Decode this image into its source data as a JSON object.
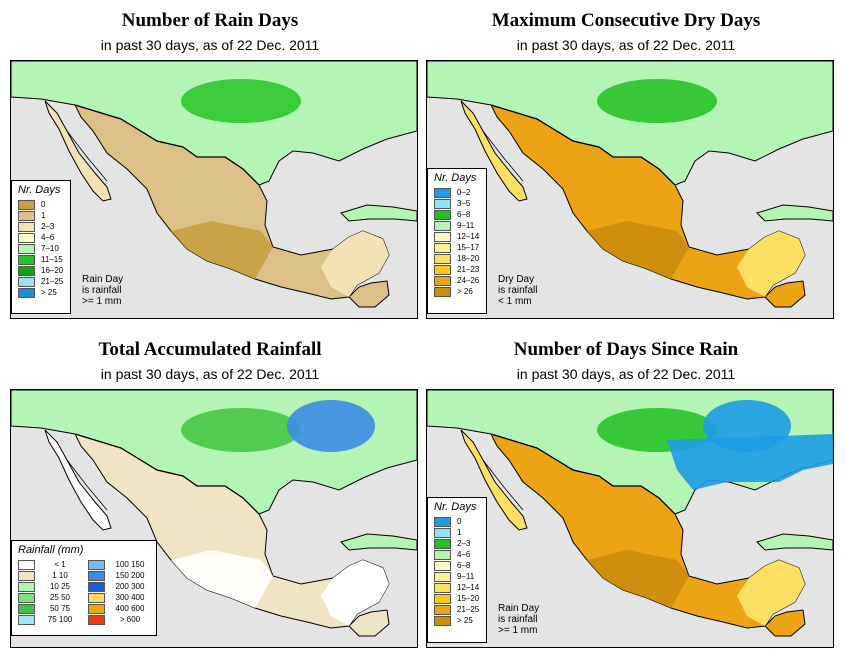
{
  "panels": [
    {
      "id": "rain_days",
      "title": "Number of Rain Days",
      "subtitle": "in past 30 days, as of  22 Dec. 2011",
      "legend_title": "Nr. Days",
      "legend": [
        {
          "label": "0",
          "color": "#c8a040"
        },
        {
          "label": "1",
          "color": "#dcc088"
        },
        {
          "label": "2–3",
          "color": "#f2e2b4"
        },
        {
          "label": "4–6",
          "color": "#fcfcc8"
        },
        {
          "label": "7–10",
          "color": "#b4f4b4"
        },
        {
          "label": "11–15",
          "color": "#24c424"
        },
        {
          "label": "16–20",
          "color": "#10a410"
        },
        {
          "label": "21–25",
          "color": "#a4dcf0"
        },
        {
          "label": "> 25",
          "color": "#1c8cd4"
        }
      ],
      "note": [
        "Rain Day",
        "is rainfall",
        ">= 1 mm"
      ],
      "map_palette": {
        "land_main": "#dcc088",
        "land_dark": "#c8a040",
        "land_light": "#f2e2b4",
        "wet": "#b4f4b4",
        "wetter": "#24c424",
        "blue": "#1c8cd4"
      }
    },
    {
      "id": "dry_days",
      "title": "Maximum Consecutive Dry Days",
      "subtitle": "in past 30 days, as of  22 Dec. 2011",
      "legend_title": "Nr. Days",
      "legend": [
        {
          "label": "0–2",
          "color": "#1c9ce4"
        },
        {
          "label": "3–5",
          "color": "#8ce4f4"
        },
        {
          "label": "6–8",
          "color": "#20c020"
        },
        {
          "label": "9–11",
          "color": "#b4f4b4"
        },
        {
          "label": "12–14",
          "color": "#fcfcc8"
        },
        {
          "label": "15–17",
          "color": "#fcf098"
        },
        {
          "label": "18–20",
          "color": "#fce064"
        },
        {
          "label": "21–23",
          "color": "#fcc81c"
        },
        {
          "label": "24–26",
          "color": "#eca414"
        },
        {
          "label": "> 26",
          "color": "#cc8c0c"
        }
      ],
      "note": [
        "Dry Day",
        "is rainfall",
        "< 1 mm"
      ],
      "map_palette": {
        "land_main": "#eca414",
        "land_dark": "#cc8c0c",
        "land_light": "#fce064",
        "wet": "#b4f4b4",
        "wetter": "#20c020",
        "blue": "#1c9ce4"
      }
    },
    {
      "id": "total_rain",
      "title": "Total Accumulated Rainfall",
      "subtitle": "in past 30 days, as of  22 Dec. 2011",
      "legend_title": "Rainfall (mm)",
      "legend_left": [
        {
          "lo": "< 1",
          "hi": "",
          "color": "#ffffff"
        },
        {
          "lo": "1",
          "hi": "10",
          "color": "#f0e4c4"
        },
        {
          "lo": "10",
          "hi": "25",
          "color": "#b4f4b4"
        },
        {
          "lo": "25",
          "hi": "50",
          "color": "#80e080"
        },
        {
          "lo": "50",
          "hi": "75",
          "color": "#40c440"
        },
        {
          "lo": "75",
          "hi": "100",
          "color": "#a4e4f4"
        }
      ],
      "legend_right": [
        {
          "lo": "100",
          "hi": "150",
          "color": "#74bcf4"
        },
        {
          "lo": "150",
          "hi": "200",
          "color": "#3c8ce4"
        },
        {
          "lo": "200",
          "hi": "300",
          "color": "#1c5cd4"
        },
        {
          "lo": "300",
          "hi": "400",
          "color": "#fcdc64"
        },
        {
          "lo": "400",
          "hi": "600",
          "color": "#f4a40c"
        },
        {
          "lo": "> 600",
          "hi": "",
          "color": "#ec3c0c"
        }
      ],
      "map_palette": {
        "land_main": "#f0e4c4",
        "land_dark": "#ffffff",
        "land_light": "#ffffff",
        "wet": "#b4f4b4",
        "wetter": "#40c440",
        "blue": "#3c8ce4"
      }
    },
    {
      "id": "since_rain",
      "title": "Number of Days Since Rain",
      "subtitle": "in past 30 days, as of  22 Dec. 2011",
      "legend_title": "Nr. Days",
      "legend": [
        {
          "label": "0",
          "color": "#1c9ce4"
        },
        {
          "label": "1",
          "color": "#8ce4f4"
        },
        {
          "label": "2–3",
          "color": "#20c020"
        },
        {
          "label": "4–6",
          "color": "#b4f4b4"
        },
        {
          "label": "6–8",
          "color": "#fcfcc8"
        },
        {
          "label": "9–11",
          "color": "#fcf098"
        },
        {
          "label": "12–14",
          "color": "#fce064"
        },
        {
          "label": "15–20",
          "color": "#fcc81c"
        },
        {
          "label": "21–25",
          "color": "#eca414"
        },
        {
          "label": "> 25",
          "color": "#cc8c0c"
        }
      ],
      "note": [
        "Rain Day",
        "is rainfall",
        ">= 1 mm"
      ],
      "map_palette": {
        "land_main": "#eca414",
        "land_dark": "#cc8c0c",
        "land_light": "#fce064",
        "wet": "#b4f4b4",
        "wetter": "#20c020",
        "blue": "#1c9ce4"
      }
    }
  ],
  "colors": {
    "ocean": "#e4e4e4",
    "border": "#000000"
  }
}
